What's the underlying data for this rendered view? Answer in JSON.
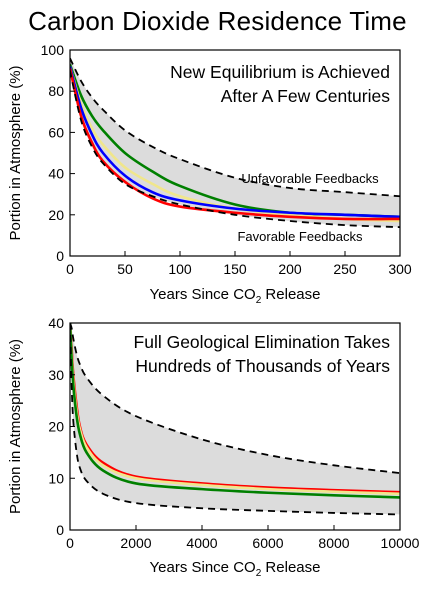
{
  "title": "Carbon Dioxide Residence Time",
  "chart_data": [
    {
      "type": "line",
      "panel": "top",
      "xlabel": "Years Since CO",
      "xlabel_sub": "2",
      "xlabel_tail": " Release",
      "ylabel": "Portion in Atmosphere (%)",
      "xlim": [
        0,
        300
      ],
      "ylim": [
        0,
        100
      ],
      "xticks": [
        0,
        50,
        100,
        150,
        200,
        250,
        300
      ],
      "yticks": [
        0,
        20,
        40,
        60,
        80,
        100
      ],
      "grid": false,
      "annotations": [
        "New Equilibrium is Achieved",
        "After A Few Centuries"
      ],
      "band_labels": {
        "upper": "Unfavorable Feedbacks",
        "lower": "Favorable Feedbacks"
      },
      "band": {
        "x": [
          0,
          10,
          20,
          30,
          50,
          75,
          100,
          150,
          200,
          250,
          300
        ],
        "upper": [
          96,
          85,
          77,
          71,
          61,
          53,
          47,
          38,
          33,
          31,
          29
        ],
        "lower": [
          90,
          66,
          53,
          45,
          35,
          29,
          25,
          20,
          17,
          15,
          14
        ]
      },
      "series": [
        {
          "color": "#008000",
          "x": [
            0,
            10,
            20,
            30,
            50,
            75,
            100,
            150,
            200,
            250,
            300
          ],
          "values": [
            93,
            78,
            68,
            61,
            50,
            41,
            34,
            25,
            21,
            20,
            19
          ]
        },
        {
          "color": "#f0e68c",
          "x": [
            0,
            10,
            20,
            30,
            50,
            75,
            100,
            150,
            200,
            250,
            300
          ],
          "values": [
            92,
            74,
            62,
            54,
            43,
            35,
            29,
            23,
            20,
            18,
            17
          ]
        },
        {
          "color": "#0000ff",
          "x": [
            0,
            10,
            20,
            30,
            50,
            75,
            100,
            150,
            200,
            250,
            300
          ],
          "values": [
            92,
            72,
            59,
            50,
            39,
            31,
            27,
            23,
            21,
            20,
            19
          ]
        },
        {
          "color": "#ff0000",
          "x": [
            0,
            10,
            20,
            30,
            50,
            75,
            100,
            150,
            200,
            250,
            300
          ],
          "values": [
            91,
            68,
            55,
            46,
            36,
            28,
            24,
            21,
            19,
            18,
            18
          ]
        }
      ]
    },
    {
      "type": "line",
      "panel": "bottom",
      "xlabel": "Years Since CO",
      "xlabel_sub": "2",
      "xlabel_tail": " Release",
      "ylabel": "Portion in Atmosphere (%)",
      "xlim": [
        0,
        10000
      ],
      "ylim": [
        0,
        40
      ],
      "xticks": [
        0,
        2000,
        4000,
        6000,
        8000,
        10000
      ],
      "yticks": [
        0,
        10,
        20,
        30,
        40
      ],
      "grid": false,
      "annotations": [
        "Full Geological Elimination Takes",
        "Hundreds of Thousands of Years"
      ],
      "band": {
        "x": [
          0,
          50,
          100,
          200,
          300,
          500,
          1000,
          2000,
          4000,
          6000,
          8000,
          10000
        ],
        "upper": [
          40,
          39,
          37,
          34,
          32,
          29.5,
          26,
          22,
          17.5,
          14.5,
          12.5,
          11
        ],
        "lower": [
          40,
          28,
          21,
          15,
          12,
          9.5,
          7,
          5.2,
          4.2,
          3.7,
          3.3,
          3
        ]
      },
      "series": [
        {
          "color": "#ff0000",
          "x": [
            0,
            50,
            100,
            200,
            300,
            500,
            1000,
            2000,
            4000,
            6000,
            8000,
            10000
          ],
          "values": [
            40,
            35,
            30,
            24,
            20,
            16.5,
            13,
            10.3,
            9,
            8.2,
            7.7,
            7.3
          ]
        },
        {
          "color": "#f0e68c",
          "x": [
            0,
            50,
            100,
            200,
            300,
            500,
            1000,
            2000,
            4000,
            6000,
            8000,
            10000
          ],
          "values": [
            40,
            34,
            29,
            23,
            19.5,
            16,
            12.5,
            10,
            8.7,
            7.9,
            7.4,
            7.0
          ]
        },
        {
          "color": "#008000",
          "x": [
            0,
            50,
            100,
            200,
            300,
            500,
            1000,
            2000,
            4000,
            6000,
            8000,
            10000
          ],
          "values": [
            40,
            33,
            28,
            22,
            18.5,
            15,
            11.5,
            9,
            7.9,
            7.2,
            6.7,
            6.3
          ]
        }
      ]
    }
  ]
}
